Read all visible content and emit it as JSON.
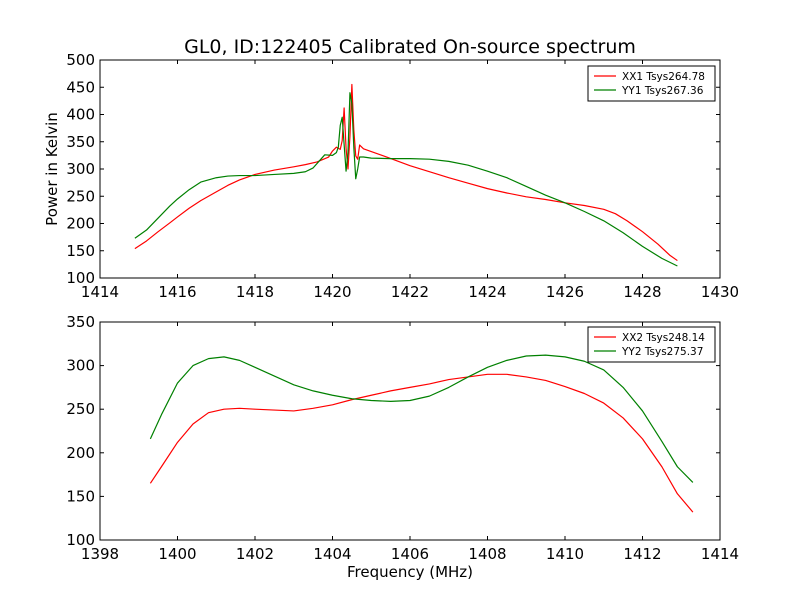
{
  "figure": {
    "title": "GL0, ID:122405 Calibrated On-source spectrum"
  },
  "chart_data": [
    {
      "type": "line",
      "title": "GL0, ID:122405 Calibrated On-source spectrum",
      "xlabel": "",
      "ylabel": "Power in Kelvin",
      "xlim": [
        1414,
        1430
      ],
      "ylim": [
        100,
        500
      ],
      "xticks": [
        1414,
        1416,
        1418,
        1420,
        1422,
        1424,
        1426,
        1428,
        1430
      ],
      "yticks": [
        100,
        150,
        200,
        250,
        300,
        350,
        400,
        450,
        500
      ],
      "legend_position": "upper right",
      "grid": false,
      "series": [
        {
          "name": "XX1 Tsys264.78",
          "color": "#ff0000",
          "points": [
            [
              1414.9,
              154
            ],
            [
              1415.2,
              168
            ],
            [
              1415.5,
              185
            ],
            [
              1415.8,
              201
            ],
            [
              1416.0,
              212
            ],
            [
              1416.3,
              228
            ],
            [
              1416.6,
              242
            ],
            [
              1417.0,
              258
            ],
            [
              1417.3,
              270
            ],
            [
              1417.6,
              280
            ],
            [
              1418.0,
              290
            ],
            [
              1418.5,
              298
            ],
            [
              1419.0,
              304
            ],
            [
              1419.3,
              308
            ],
            [
              1419.6,
              313
            ],
            [
              1419.9,
              322
            ],
            [
              1420.0,
              333
            ],
            [
              1420.1,
              340
            ],
            [
              1420.2,
              336
            ],
            [
              1420.25,
              352
            ],
            [
              1420.3,
              412
            ],
            [
              1420.35,
              338
            ],
            [
              1420.4,
              300
            ],
            [
              1420.45,
              360
            ],
            [
              1420.5,
              455
            ],
            [
              1420.55,
              372
            ],
            [
              1420.6,
              324
            ],
            [
              1420.65,
              318
            ],
            [
              1420.7,
              344
            ],
            [
              1420.8,
              337
            ],
            [
              1421.0,
              332
            ],
            [
              1421.4,
              322
            ],
            [
              1422.0,
              306
            ],
            [
              1422.5,
              295
            ],
            [
              1423.0,
              284
            ],
            [
              1423.5,
              274
            ],
            [
              1424.0,
              264
            ],
            [
              1424.5,
              256
            ],
            [
              1425.0,
              249
            ],
            [
              1425.5,
              244
            ],
            [
              1426.0,
              238
            ],
            [
              1426.5,
              233
            ],
            [
              1427.0,
              226
            ],
            [
              1427.3,
              218
            ],
            [
              1427.6,
              205
            ],
            [
              1428.0,
              185
            ],
            [
              1428.4,
              162
            ],
            [
              1428.7,
              142
            ],
            [
              1428.9,
              132
            ]
          ]
        },
        {
          "name": "YY1 Tsys267.36",
          "color": "#008000",
          "points": [
            [
              1414.9,
              173
            ],
            [
              1415.2,
              188
            ],
            [
              1415.5,
              210
            ],
            [
              1415.8,
              232
            ],
            [
              1416.0,
              245
            ],
            [
              1416.3,
              262
            ],
            [
              1416.6,
              276
            ],
            [
              1417.0,
              284
            ],
            [
              1417.3,
              287
            ],
            [
              1417.6,
              288
            ],
            [
              1418.0,
              288
            ],
            [
              1418.5,
              290
            ],
            [
              1419.0,
              292
            ],
            [
              1419.3,
              295
            ],
            [
              1419.5,
              302
            ],
            [
              1419.7,
              318
            ],
            [
              1419.8,
              326
            ],
            [
              1420.0,
              325
            ],
            [
              1420.1,
              330
            ],
            [
              1420.15,
              340
            ],
            [
              1420.2,
              380
            ],
            [
              1420.25,
              395
            ],
            [
              1420.3,
              345
            ],
            [
              1420.35,
              296
            ],
            [
              1420.4,
              330
            ],
            [
              1420.45,
              440
            ],
            [
              1420.5,
              420
            ],
            [
              1420.55,
              340
            ],
            [
              1420.6,
              282
            ],
            [
              1420.65,
              300
            ],
            [
              1420.7,
              322
            ],
            [
              1420.8,
              322
            ],
            [
              1421.0,
              320
            ],
            [
              1421.5,
              319
            ],
            [
              1422.0,
              319
            ],
            [
              1422.5,
              318
            ],
            [
              1423.0,
              314
            ],
            [
              1423.5,
              307
            ],
            [
              1424.0,
              296
            ],
            [
              1424.5,
              284
            ],
            [
              1425.0,
              268
            ],
            [
              1425.5,
              252
            ],
            [
              1426.0,
              238
            ],
            [
              1426.5,
              222
            ],
            [
              1427.0,
              205
            ],
            [
              1427.5,
              183
            ],
            [
              1428.0,
              158
            ],
            [
              1428.5,
              136
            ],
            [
              1428.9,
              122
            ]
          ]
        }
      ]
    },
    {
      "type": "line",
      "title": "",
      "xlabel": "Frequency (MHz)",
      "ylabel": "",
      "xlim": [
        1398,
        1414
      ],
      "ylim": [
        100,
        350
      ],
      "xticks": [
        1398,
        1400,
        1402,
        1404,
        1406,
        1408,
        1410,
        1412,
        1414
      ],
      "yticks": [
        100,
        150,
        200,
        250,
        300,
        350
      ],
      "legend_position": "upper right",
      "grid": false,
      "series": [
        {
          "name": "XX2 Tsys248.14",
          "color": "#ff0000",
          "points": [
            [
              1399.3,
              165
            ],
            [
              1399.6,
              185
            ],
            [
              1400.0,
              212
            ],
            [
              1400.4,
              233
            ],
            [
              1400.8,
              246
            ],
            [
              1401.2,
              250
            ],
            [
              1401.6,
              251
            ],
            [
              1402.0,
              250
            ],
            [
              1402.5,
              249
            ],
            [
              1403.0,
              248
            ],
            [
              1403.5,
              251
            ],
            [
              1404.0,
              255
            ],
            [
              1404.5,
              261
            ],
            [
              1405.0,
              266
            ],
            [
              1405.5,
              271
            ],
            [
              1406.0,
              275
            ],
            [
              1406.5,
              279
            ],
            [
              1407.0,
              284
            ],
            [
              1407.5,
              287
            ],
            [
              1408.0,
              290
            ],
            [
              1408.5,
              290
            ],
            [
              1409.0,
              287
            ],
            [
              1409.5,
              283
            ],
            [
              1410.0,
              276
            ],
            [
              1410.5,
              268
            ],
            [
              1411.0,
              257
            ],
            [
              1411.5,
              240
            ],
            [
              1412.0,
              216
            ],
            [
              1412.5,
              184
            ],
            [
              1412.9,
              153
            ],
            [
              1413.3,
              132
            ]
          ]
        },
        {
          "name": "YY2 Tsys275.37",
          "color": "#008000",
          "points": [
            [
              1399.3,
              216
            ],
            [
              1399.6,
              245
            ],
            [
              1400.0,
              280
            ],
            [
              1400.4,
              300
            ],
            [
              1400.8,
              308
            ],
            [
              1401.2,
              310
            ],
            [
              1401.6,
              306
            ],
            [
              1402.0,
              298
            ],
            [
              1402.5,
              288
            ],
            [
              1403.0,
              278
            ],
            [
              1403.5,
              271
            ],
            [
              1404.0,
              266
            ],
            [
              1404.5,
              262
            ],
            [
              1405.0,
              260
            ],
            [
              1405.5,
              259
            ],
            [
              1406.0,
              260
            ],
            [
              1406.5,
              265
            ],
            [
              1407.0,
              275
            ],
            [
              1407.5,
              287
            ],
            [
              1408.0,
              298
            ],
            [
              1408.5,
              306
            ],
            [
              1409.0,
              311
            ],
            [
              1409.5,
              312
            ],
            [
              1410.0,
              310
            ],
            [
              1410.5,
              305
            ],
            [
              1411.0,
              295
            ],
            [
              1411.5,
              275
            ],
            [
              1412.0,
              248
            ],
            [
              1412.5,
              213
            ],
            [
              1412.9,
              184
            ],
            [
              1413.3,
              166
            ]
          ]
        }
      ]
    }
  ]
}
